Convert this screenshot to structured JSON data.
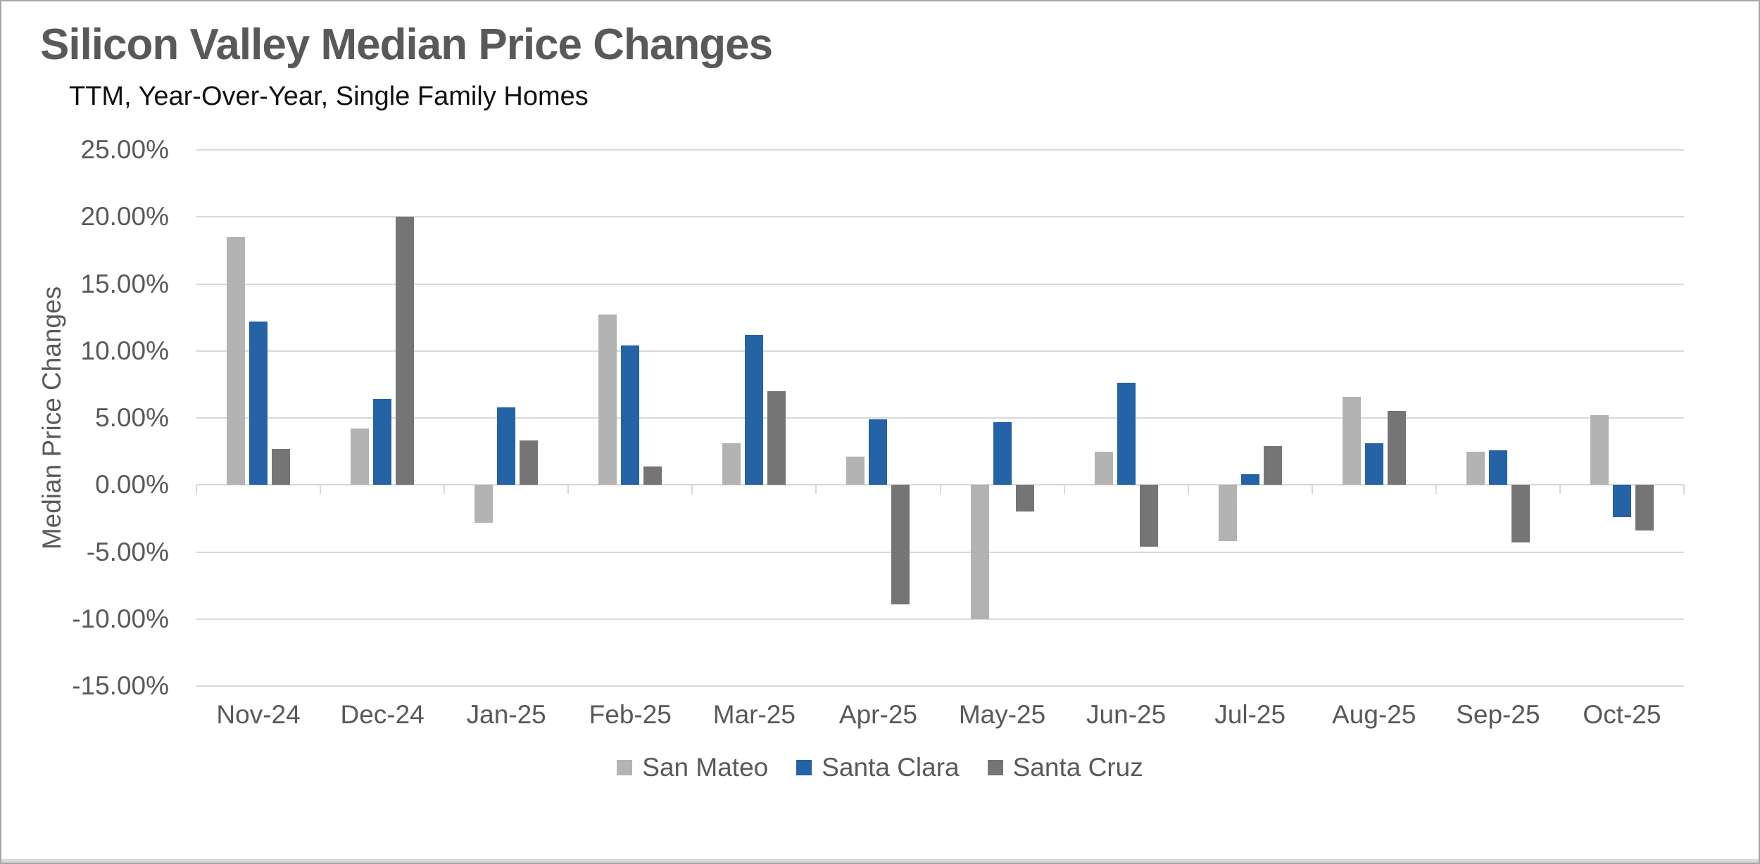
{
  "page": {
    "title": "Silicon Valley Median Price Changes",
    "subtitle": "TTM, Year-Over-Year, Single Family Homes"
  },
  "chart_data": {
    "type": "bar",
    "title": "Silicon Valley Median Price Changes",
    "subtitle": "TTM, Year-Over-Year, Single Family Homes",
    "xlabel": "",
    "ylabel": "Median Price Changes",
    "categories": [
      "Nov-24",
      "Dec-24",
      "Jan-25",
      "Feb-25",
      "Mar-25",
      "Apr-25",
      "May-25",
      "Jun-25",
      "Jul-25",
      "Aug-25",
      "Sep-25",
      "Oct-25"
    ],
    "series": [
      {
        "name": "San Mateo",
        "color": "#b3b3b3",
        "values": [
          18.5,
          4.2,
          -2.8,
          12.7,
          3.1,
          2.1,
          -10.0,
          2.5,
          -4.2,
          6.6,
          2.5,
          5.2
        ]
      },
      {
        "name": "Santa Clara",
        "color": "#2363a6",
        "values": [
          12.2,
          6.4,
          5.8,
          10.4,
          11.2,
          4.9,
          4.7,
          7.6,
          0.8,
          3.1,
          2.6,
          -2.4
        ]
      },
      {
        "name": "Santa Cruz",
        "color": "#757575",
        "values": [
          2.7,
          20.0,
          3.3,
          1.4,
          7.0,
          -8.9,
          -2.0,
          -4.6,
          2.9,
          5.5,
          -4.3,
          -3.4
        ]
      }
    ],
    "value_unit": "percent",
    "ylim": [
      -15,
      25
    ],
    "ytick_step": 5,
    "y_ticks": [
      25,
      20,
      15,
      10,
      5,
      0,
      -5,
      -10,
      -15
    ],
    "y_tick_labels": [
      "25.00%",
      "20.00%",
      "15.00%",
      "10.00%",
      "5.00%",
      "0.00%",
      "-5.00%",
      "-10.00%",
      "-15.00%"
    ],
    "grid": true,
    "legend_position": "bottom"
  },
  "colors": {
    "grid": "#d9d9d9",
    "axis_text": "#595959",
    "title_text": "#595959",
    "subtitle_text": "#111111",
    "frame_border": "#a6a6a6"
  }
}
